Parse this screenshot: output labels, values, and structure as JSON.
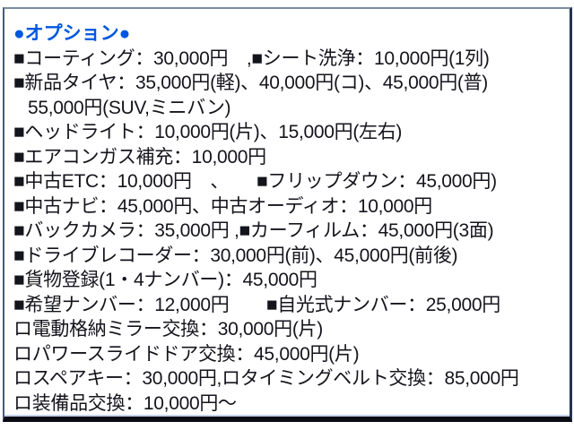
{
  "panel": {
    "title": "●オプション●",
    "lines": [
      "■コーティング：30,000円　,■シート洗浄：10,000円(1列)",
      "■新品タイヤ：35,000円(軽)、40,000円(コ)、45,000円(普)",
      "55,000円(SUV,ミニバン)",
      "■ヘッドライト：10,000円(片)、15,000円(左右)",
      "■エアコンガス補充：10,000円",
      "■中古ETC：10,000円　、　　■フリップダウン：45,000円)",
      "■中古ナビ：45,000円、中古オーディオ：10,000円",
      "■バックカメラ：35,000円 ,■カーフィルム：45,000円(3面)",
      "■ドライブレコーダー：30,000円(前)、45,000円(前後)",
      "■貨物登録(1・4ナンバー)：45,000円",
      "■希望ナンバー：12,000円　　■自光式ナンバー：25,000円",
      "ロ電動格納ミラー交換：30,000円(片)",
      "ロパワースライドドア交換：45,000円(片)",
      "ロスペアキー：30,000円,ロタイミングベルト交換：85,000円",
      "ロ装備品交換：10,000円～"
    ],
    "colors": {
      "title_blue": "#0057df",
      "body_text": "#14141c",
      "frame_top": "#7a8aa2",
      "frame_side": "#4a5a78",
      "bottom_rule": "#0a0a12",
      "inner_strip": "#c5d2ea",
      "background": "#ffffff"
    }
  }
}
